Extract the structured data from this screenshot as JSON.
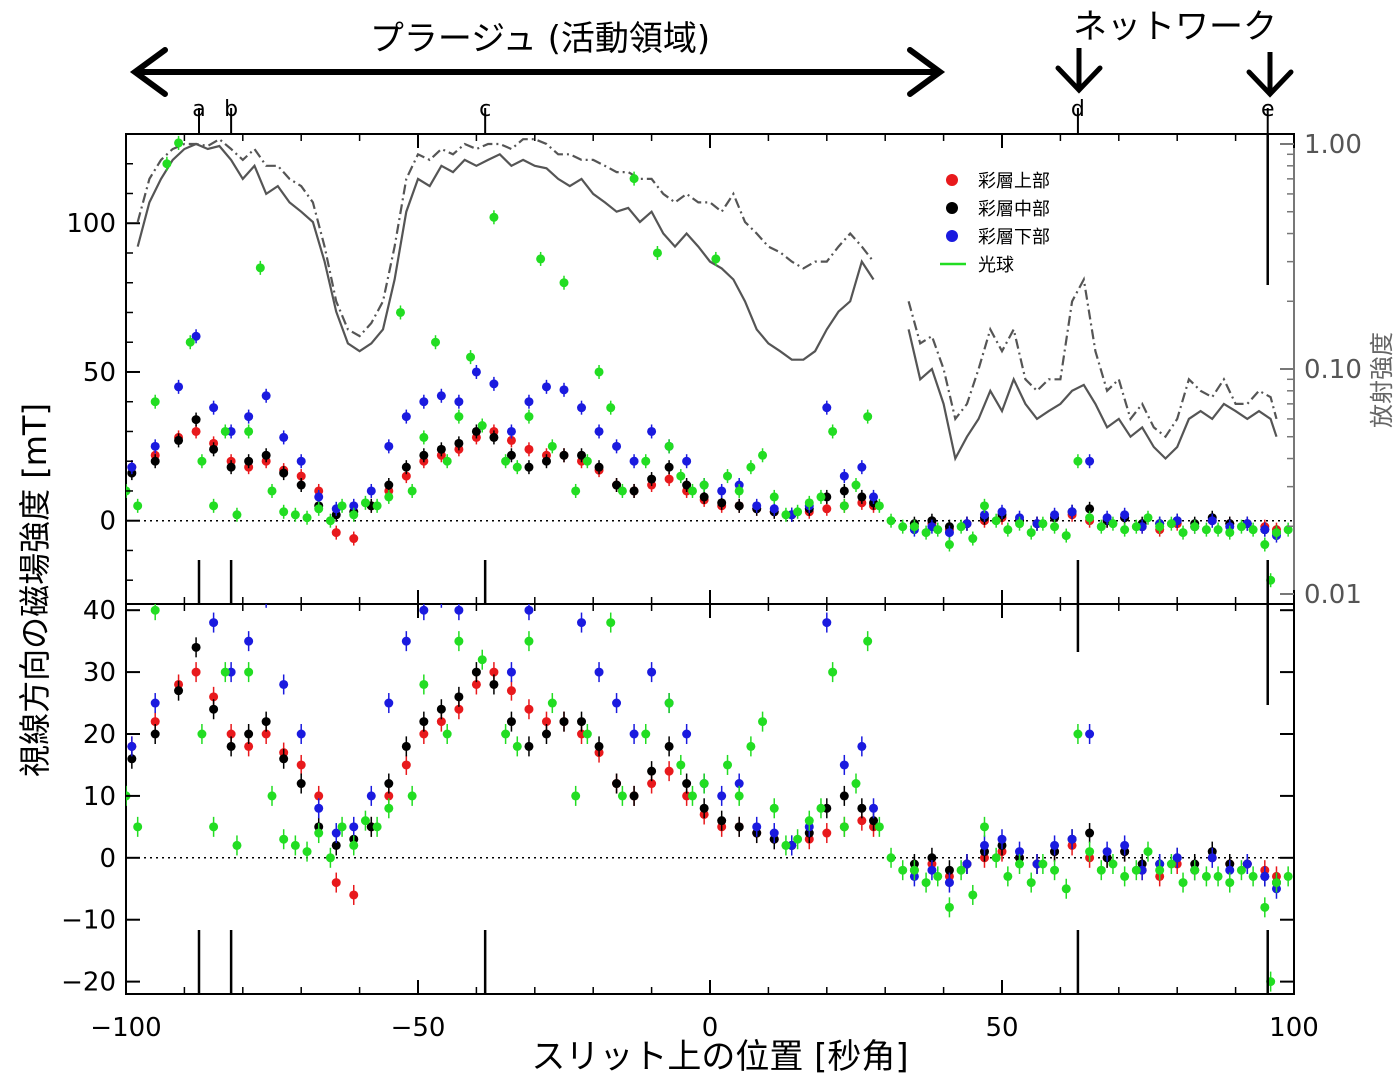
{
  "chart_data": [
    {
      "type": "line",
      "panel": "upper",
      "xlabel": "スリット上の位置 [秒角]",
      "ylabel": "視線方向の磁場強度 [mT]",
      "right_axis_label": "放射強度",
      "xlim": [
        -100,
        100
      ],
      "ylim": [
        -28,
        130
      ],
      "right_axis_scale": "log",
      "right_axis_range": [
        0.01,
        1.0
      ],
      "x_ticks": [
        "−100",
        "−50",
        "0",
        "50",
        "100"
      ],
      "y_ticks": [
        "0",
        "50",
        "100"
      ],
      "right_ticks": [
        "0.01",
        "0.10",
        "1.00"
      ],
      "annotations": {
        "plage_label": "プラージュ (活動領域)",
        "network_label": "ネットワーク",
        "markers": [
          {
            "label": "a",
            "x": -87.5
          },
          {
            "label": "b",
            "x": -82
          },
          {
            "label": "c",
            "x": -38.5
          },
          {
            "label": "d",
            "x": 63
          },
          {
            "label": "e",
            "x": 95.5
          }
        ]
      },
      "legend": {
        "placement": "top-center-right",
        "entries": [
          {
            "name": "彩層上部",
            "color": "#e8191c",
            "style": "dot"
          },
          {
            "name": "彩層中部",
            "color": "#000000",
            "style": "dot"
          },
          {
            "name": "彩層下部",
            "color": "#1a1adf",
            "style": "dot"
          },
          {
            "name": "光球",
            "color": "#22dd22",
            "style": "line"
          }
        ]
      },
      "series": [
        {
          "name": "彩層上部",
          "color": "#e8191c",
          "x": [
            -99,
            -95,
            -91,
            -88,
            -85,
            -82,
            -79,
            -76,
            -73,
            -70,
            -67,
            -64,
            -61,
            -58,
            -55,
            -52,
            -49,
            -46,
            -43,
            -40,
            -37,
            -34,
            -31,
            -28,
            -25,
            -22,
            -19,
            -16,
            -13,
            -10,
            -7,
            -4,
            -1,
            2,
            5,
            8,
            11,
            14,
            17,
            20,
            23,
            26,
            28,
            35,
            38,
            41,
            44,
            47,
            50,
            53,
            56,
            59,
            62,
            65,
            68,
            71,
            74,
            77,
            80,
            83,
            86,
            89,
            92,
            95,
            97
          ],
          "y": [
            18,
            22,
            28,
            30,
            26,
            20,
            18,
            20,
            17,
            15,
            10,
            -4,
            -6,
            5,
            10,
            15,
            20,
            22,
            24,
            28,
            30,
            27,
            24,
            22,
            22,
            20,
            17,
            12,
            10,
            12,
            14,
            10,
            7,
            5,
            5,
            4,
            3,
            2,
            3,
            4,
            5,
            6,
            5,
            -2,
            -1,
            -3,
            -1,
            0,
            1,
            0,
            -1,
            1,
            2,
            0,
            0,
            1,
            -2,
            -3,
            -1,
            -2,
            0,
            -1,
            -1,
            -2,
            -3
          ]
        },
        {
          "name": "彩層中部",
          "color": "#000000",
          "x": [
            -99,
            -95,
            -91,
            -88,
            -85,
            -82,
            -79,
            -76,
            -73,
            -70,
            -67,
            -64,
            -61,
            -58,
            -55,
            -52,
            -49,
            -46,
            -43,
            -40,
            -37,
            -34,
            -31,
            -28,
            -25,
            -22,
            -19,
            -16,
            -13,
            -10,
            -7,
            -4,
            -1,
            2,
            5,
            8,
            11,
            14,
            17,
            20,
            23,
            26,
            28,
            35,
            38,
            41,
            44,
            47,
            50,
            53,
            56,
            59,
            62,
            65,
            68,
            71,
            74,
            77,
            80,
            83,
            86,
            89,
            92,
            95,
            97
          ],
          "y": [
            16,
            20,
            27,
            34,
            24,
            18,
            20,
            22,
            16,
            12,
            5,
            2,
            3,
            5,
            12,
            18,
            22,
            24,
            26,
            30,
            28,
            22,
            18,
            20,
            22,
            22,
            18,
            12,
            10,
            14,
            18,
            12,
            8,
            6,
            5,
            4,
            3,
            2,
            4,
            8,
            10,
            8,
            6,
            -1,
            0,
            -2,
            -1,
            1,
            2,
            0,
            -1,
            1,
            3,
            4,
            0,
            1,
            -1,
            -1,
            0,
            -1,
            1,
            -1,
            -1,
            -3,
            -4
          ]
        },
        {
          "name": "彩層下部",
          "color": "#1a1adf",
          "x": [
            -99,
            -95,
            -91,
            -88,
            -85,
            -82,
            -79,
            -76,
            -73,
            -70,
            -67,
            -64,
            -61,
            -58,
            -55,
            -52,
            -49,
            -46,
            -43,
            -40,
            -37,
            -34,
            -31,
            -28,
            -25,
            -22,
            -19,
            -16,
            -13,
            -10,
            -7,
            -4,
            -1,
            2,
            5,
            8,
            11,
            14,
            17,
            20,
            23,
            26,
            28,
            35,
            38,
            41,
            44,
            47,
            50,
            53,
            56,
            59,
            62,
            65,
            68,
            71,
            74,
            77,
            80,
            83,
            86,
            89,
            92,
            95,
            97
          ],
          "y": [
            18,
            25,
            45,
            62,
            38,
            30,
            35,
            42,
            28,
            20,
            8,
            4,
            5,
            10,
            25,
            35,
            40,
            42,
            40,
            50,
            46,
            30,
            40,
            45,
            44,
            38,
            30,
            25,
            20,
            30,
            25,
            20,
            12,
            10,
            12,
            5,
            4,
            2,
            5,
            38,
            15,
            18,
            8,
            -3,
            -2,
            -4,
            -1,
            2,
            3,
            1,
            -1,
            2,
            3,
            20,
            1,
            2,
            -2,
            -1,
            0,
            -2,
            0,
            -2,
            -1,
            -3,
            -5
          ]
        },
        {
          "name": "光球",
          "color": "#22dd22",
          "x": [
            -100,
            -98,
            -95,
            -93,
            -91,
            -89,
            -87,
            -85,
            -83,
            -81,
            -79,
            -77,
            -75,
            -73,
            -71,
            -69,
            -67,
            -65,
            -63,
            -61,
            -59,
            -57,
            -55,
            -53,
            -51,
            -49,
            -47,
            -45,
            -43,
            -41,
            -39,
            -37,
            -35,
            -33,
            -31,
            -29,
            -27,
            -25,
            -23,
            -21,
            -19,
            -17,
            -15,
            -13,
            -11,
            -9,
            -7,
            -5,
            -3,
            -1,
            1,
            3,
            5,
            7,
            9,
            11,
            13,
            15,
            17,
            19,
            21,
            23,
            25,
            27,
            29,
            31,
            33,
            35,
            37,
            39,
            41,
            43,
            45,
            47,
            49,
            51,
            53,
            55,
            57,
            59,
            61,
            63,
            65,
            67,
            69,
            71,
            73,
            75,
            77,
            79,
            81,
            83,
            85,
            87,
            89,
            91,
            93,
            95,
            96,
            97,
            99
          ],
          "y": [
            10,
            5,
            40,
            120,
            127,
            60,
            20,
            5,
            30,
            2,
            30,
            85,
            10,
            3,
            2,
            1,
            4,
            0,
            5,
            2,
            6,
            5,
            8,
            70,
            10,
            28,
            60,
            20,
            35,
            55,
            32,
            102,
            20,
            18,
            35,
            88,
            25,
            80,
            10,
            20,
            50,
            38,
            10,
            115,
            20,
            90,
            25,
            15,
            10,
            12,
            88,
            15,
            10,
            18,
            22,
            8,
            2,
            3,
            6,
            8,
            30,
            5,
            12,
            35,
            5,
            0,
            -2,
            -2,
            -4,
            -3,
            -8,
            -2,
            -6,
            5,
            0,
            -3,
            -1,
            -4,
            -1,
            -2,
            -5,
            20,
            1,
            -2,
            -1,
            -3,
            -2,
            1,
            -2,
            -1,
            -4,
            -2,
            -3,
            -3,
            -4,
            -2,
            -3,
            -8,
            -20,
            -4,
            -3
          ]
        },
        {
          "name": "",
          "color": "#555555",
          "style": "solid",
          "axis": "right",
          "x": [
            -98,
            -96,
            -94,
            -92,
            -90,
            -88,
            -86,
            -84,
            -82,
            -80,
            -78,
            -76,
            -74,
            -72,
            -70,
            -68,
            -66,
            -64,
            -62,
            -60,
            -58,
            -56,
            -54,
            -52,
            -50,
            -48,
            -46,
            -44,
            -42,
            -40,
            -38,
            -36,
            -34,
            -32,
            -30,
            -28,
            -26,
            -24,
            -22,
            -20,
            -18,
            -16,
            -14,
            -12,
            -10,
            -8,
            -6,
            -4,
            -2,
            0,
            2,
            4,
            6,
            8,
            10,
            12,
            14,
            16,
            18,
            20,
            22,
            24,
            26,
            28
          ],
          "y": [
            0.35,
            0.55,
            0.7,
            0.85,
            0.95,
            1.0,
            0.95,
            0.98,
            0.85,
            0.7,
            0.8,
            0.6,
            0.65,
            0.55,
            0.5,
            0.45,
            0.3,
            0.18,
            0.13,
            0.12,
            0.13,
            0.15,
            0.25,
            0.5,
            0.7,
            0.65,
            0.8,
            0.75,
            0.85,
            0.8,
            0.85,
            0.9,
            0.8,
            0.85,
            0.8,
            0.78,
            0.7,
            0.65,
            0.7,
            0.6,
            0.55,
            0.5,
            0.52,
            0.45,
            0.5,
            0.4,
            0.35,
            0.4,
            0.35,
            0.3,
            0.28,
            0.25,
            0.2,
            0.15,
            0.13,
            0.12,
            0.11,
            0.11,
            0.12,
            0.15,
            0.18,
            0.2,
            0.3,
            0.25
          ]
        },
        {
          "name": "",
          "color": "#555555",
          "style": "dashdot",
          "axis": "right",
          "x": [
            -98,
            -96,
            -94,
            -92,
            -90,
            -88,
            -86,
            -84,
            -82,
            -80,
            -78,
            -76,
            -74,
            -72,
            -70,
            -68,
            -66,
            -64,
            -62,
            -60,
            -58,
            -56,
            -54,
            -52,
            -50,
            -48,
            -46,
            -44,
            -42,
            -40,
            -38,
            -36,
            -34,
            -32,
            -30,
            -28,
            -26,
            -24,
            -22,
            -20,
            -18,
            -16,
            -14,
            -12,
            -10,
            -8,
            -6,
            -4,
            -2,
            0,
            2,
            4,
            6,
            8,
            10,
            12,
            14,
            16,
            18,
            20,
            22,
            24,
            26,
            28
          ],
          "y": [
            0.45,
            0.7,
            0.85,
            0.95,
            1.0,
            1.0,
            0.98,
            1.05,
            0.95,
            0.85,
            0.95,
            0.8,
            0.8,
            0.7,
            0.65,
            0.55,
            0.35,
            0.2,
            0.15,
            0.14,
            0.16,
            0.2,
            0.35,
            0.7,
            0.9,
            0.85,
            0.95,
            0.9,
            1.0,
            0.95,
            1.0,
            1.0,
            0.95,
            1.05,
            1.05,
            1.0,
            0.9,
            0.9,
            0.85,
            0.85,
            0.8,
            0.75,
            0.75,
            0.7,
            0.7,
            0.6,
            0.55,
            0.6,
            0.55,
            0.55,
            0.5,
            0.6,
            0.45,
            0.4,
            0.35,
            0.33,
            0.3,
            0.28,
            0.3,
            0.3,
            0.35,
            0.4,
            0.35,
            0.3
          ]
        },
        {
          "name": "",
          "color": "#555555",
          "style": "solid",
          "axis": "right",
          "x": [
            34,
            36,
            38,
            40,
            42,
            44,
            46,
            48,
            50,
            52,
            54,
            56,
            58,
            60,
            62,
            64,
            66,
            68,
            70,
            72,
            74,
            76,
            78,
            80,
            82,
            84,
            86,
            88,
            90,
            92,
            94,
            96,
            97
          ],
          "y": [
            0.15,
            0.09,
            0.1,
            0.07,
            0.04,
            0.05,
            0.06,
            0.08,
            0.065,
            0.09,
            0.07,
            0.06,
            0.065,
            0.07,
            0.08,
            0.085,
            0.07,
            0.055,
            0.06,
            0.05,
            0.055,
            0.045,
            0.04,
            0.045,
            0.06,
            0.065,
            0.06,
            0.07,
            0.065,
            0.06,
            0.065,
            0.06,
            0.05
          ]
        },
        {
          "name": "",
          "color": "#555555",
          "style": "dashdot",
          "axis": "right",
          "x": [
            34,
            36,
            38,
            40,
            42,
            44,
            46,
            48,
            50,
            52,
            54,
            56,
            58,
            60,
            62,
            64,
            66,
            68,
            70,
            72,
            74,
            76,
            78,
            80,
            82,
            84,
            86,
            88,
            90,
            92,
            94,
            96,
            97
          ],
          "y": [
            0.2,
            0.13,
            0.14,
            0.1,
            0.06,
            0.07,
            0.1,
            0.15,
            0.12,
            0.15,
            0.09,
            0.08,
            0.09,
            0.09,
            0.2,
            0.25,
            0.12,
            0.08,
            0.09,
            0.06,
            0.07,
            0.055,
            0.05,
            0.06,
            0.09,
            0.08,
            0.075,
            0.09,
            0.07,
            0.07,
            0.08,
            0.075,
            0.06
          ]
        }
      ]
    },
    {
      "type": "line",
      "panel": "lower",
      "xlabel": "スリット上の位置 [秒角]",
      "ylabel": "視線方向の磁場強度 [mT]",
      "xlim": [
        -100,
        100
      ],
      "ylim": [
        -22,
        41
      ],
      "x_ticks": [
        "−100",
        "−50",
        "0",
        "50",
        "100"
      ],
      "y_ticks": [
        "−20",
        "−10",
        "0",
        "10",
        "20",
        "30",
        "40"
      ],
      "note": "same series as upper panel, y range clipped to -22..41"
    }
  ]
}
